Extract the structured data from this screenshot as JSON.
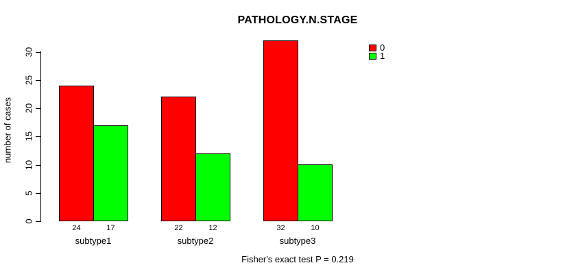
{
  "chart_data": {
    "type": "bar",
    "title": "PATHOLOGY.N.STAGE",
    "ylabel": "number of cases",
    "xlabel": "",
    "categories": [
      "subtype1",
      "subtype2",
      "subtype3"
    ],
    "series": [
      {
        "name": "0",
        "color": "#FF0000",
        "values": [
          24,
          22,
          32
        ]
      },
      {
        "name": "1",
        "color": "#00FF00",
        "values": [
          17,
          12,
          10
        ]
      }
    ],
    "bar_value_labels": [
      [
        24,
        17
      ],
      [
        22,
        12
      ],
      [
        32,
        10
      ]
    ],
    "yticks": [
      0,
      5,
      10,
      15,
      20,
      25,
      30
    ],
    "ylim": [
      0,
      32
    ],
    "grid": false,
    "legend_position": "top-right-inside",
    "note": "Fisher's exact test P = 0.219"
  },
  "colors": {
    "bar_outline": "#000000",
    "axis": "#000000",
    "background": "#FFFFFF"
  }
}
